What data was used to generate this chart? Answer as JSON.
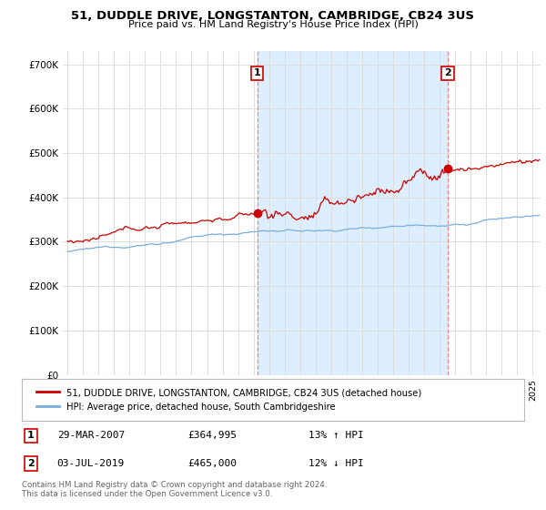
{
  "title": "51, DUDDLE DRIVE, LONGSTANTON, CAMBRIDGE, CB24 3US",
  "subtitle": "Price paid vs. HM Land Registry's House Price Index (HPI)",
  "hpi_label": "HPI: Average price, detached house, South Cambridgeshire",
  "property_label": "51, DUDDLE DRIVE, LONGSTANTON, CAMBRIDGE, CB24 3US (detached house)",
  "red_color": "#cc0000",
  "blue_color": "#7aaedc",
  "shade_color": "#ddeeff",
  "dashed_color": "#ee8888",
  "bg_color": "#ffffff",
  "grid_color": "#dddddd",
  "annotation1": {
    "x_year": 2007.23,
    "label": "1",
    "price": "£364,995",
    "date": "29-MAR-2007",
    "pct": "13% ↑ HPI",
    "value": 364995
  },
  "annotation2": {
    "x_year": 2019.51,
    "label": "2",
    "price": "£465,000",
    "date": "03-JUL-2019",
    "pct": "12% ↓ HPI",
    "value": 465000
  },
  "ylim": [
    0,
    730000
  ],
  "xlim_start": 1994.7,
  "xlim_end": 2025.5,
  "yticks": [
    0,
    100000,
    200000,
    300000,
    400000,
    500000,
    600000,
    700000
  ],
  "ytick_labels": [
    "£0",
    "£100K",
    "£200K",
    "£300K",
    "£400K",
    "£500K",
    "£600K",
    "£700K"
  ],
  "footer": "Contains HM Land Registry data © Crown copyright and database right 2024.\nThis data is licensed under the Open Government Licence v3.0."
}
